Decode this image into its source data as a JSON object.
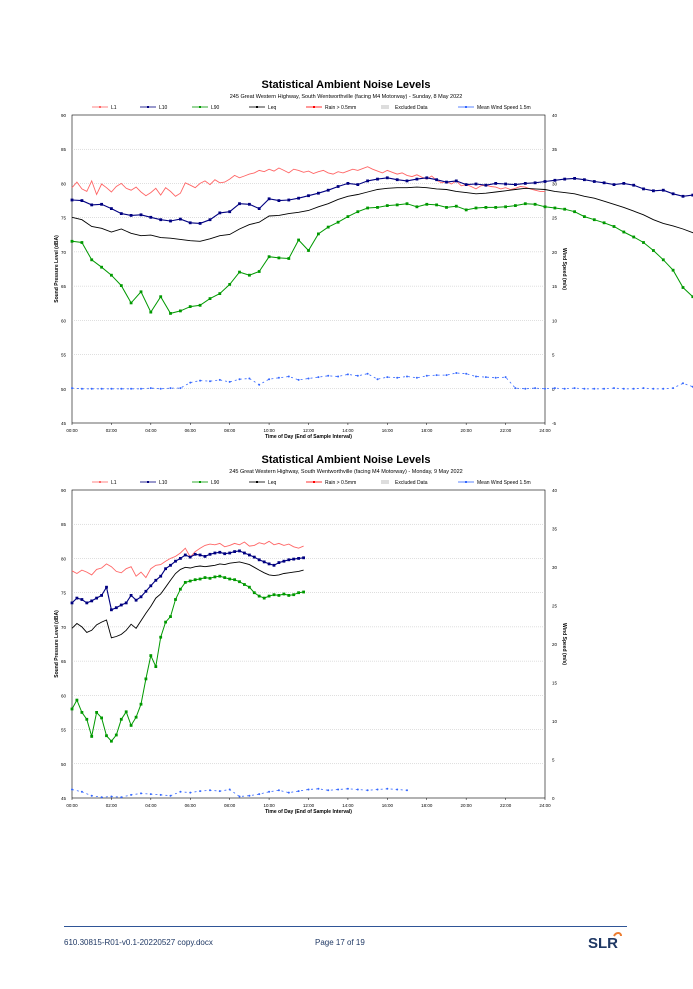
{
  "chart_data": [
    {
      "type": "line",
      "title": "Statistical Ambient Noise Levels",
      "subtitle": "245 Great Western Highway, South Wentworthville (facing M4 Motorway) - Sunday, 8 May 2022",
      "xlabel": "Time of Day (End of Sample Interval)",
      "ylabel": "Sound Pressure Level (dBA)",
      "y2label": "Wind Speed (m/s)",
      "ylim": [
        40,
        90
      ],
      "y2lim": [
        -5,
        40
      ],
      "y_ticks": [
        "90",
        "85",
        "80",
        "75",
        "70",
        "65",
        "60",
        "55",
        "50",
        "45"
      ],
      "y2_ticks": [
        "40",
        "35",
        "30",
        "25",
        "20",
        "15",
        "10",
        "5",
        "0",
        "-5"
      ],
      "x_ticks": [
        "00:00",
        "02:00",
        "04:00",
        "06:00",
        "08:00",
        "10:00",
        "12:00",
        "14:00",
        "16:00",
        "18:00",
        "20:00",
        "22:00",
        "24:00"
      ],
      "grid": true,
      "legend": [
        {
          "label": "L1",
          "color": "#ff6666"
        },
        {
          "label": "L10",
          "color": "#000080"
        },
        {
          "label": "L90",
          "color": "#009900"
        },
        {
          "label": "Leq",
          "color": "#000000"
        },
        {
          "label": "Rain > 0.5mm",
          "color": "#ff0000"
        },
        {
          "label": "Excluded Data",
          "color": "#dddddd"
        },
        {
          "label": "Mean Wind Speed 1.5m",
          "color": "#3366ff"
        }
      ],
      "series": [
        {
          "name": "L1",
          "axis": "left",
          "x_start": 0,
          "x_step": 0.25,
          "values": [
            78.2,
            79.1,
            78.0,
            77.6,
            79.3,
            77.1,
            78.8,
            78.2,
            77.5,
            78.4,
            78.9,
            78.1,
            77.8,
            78.3,
            77.5,
            76.9,
            77.4,
            78.1,
            77.0,
            78.2,
            77.6,
            76.8,
            77.3,
            79.0,
            78.6,
            78.2,
            78.9,
            79.3,
            78.7,
            79.5,
            79.0,
            79.1,
            79.6,
            80.2,
            79.8,
            80.1,
            80.4,
            80.6,
            81.0,
            80.8,
            81.2,
            80.9,
            81.4,
            81.0,
            80.6,
            81.2,
            81.0,
            80.7,
            80.9,
            80.5,
            80.8,
            81.0,
            80.6,
            80.4,
            80.8,
            80.6,
            80.9,
            81.2,
            81.0,
            81.3,
            81.6,
            81.2,
            80.9,
            80.6,
            81.0,
            80.7,
            80.4,
            80.6,
            80.2,
            80.0,
            80.3,
            79.9,
            79.6,
            80.1,
            79.4,
            79.0,
            79.2,
            78.8,
            79.3,
            78.5,
            78.7,
            78.4,
            78.0,
            78.5,
            78.6,
            78.4,
            78.3,
            78.0,
            78.2,
            77.9,
            78.1,
            78.4,
            78.3,
            78.0,
            77.8,
            77.6,
            77.6
          ]
        },
        {
          "name": "L10",
          "axis": "left",
          "x_start": 0,
          "x_step": 0.5,
          "values": [
            76.2,
            76.1,
            75.4,
            75.5,
            74.8,
            74.0,
            73.7,
            73.8,
            73.4,
            73.0,
            72.8,
            73.1,
            72.5,
            72.4,
            73.0,
            74.1,
            74.3,
            75.6,
            75.5,
            74.8,
            76.4,
            76.1,
            76.2,
            76.5,
            76.9,
            77.3,
            77.8,
            78.4,
            78.9,
            78.7,
            79.3,
            79.6,
            79.8,
            79.5,
            79.3,
            79.6,
            79.8,
            79.5,
            79.1,
            79.3,
            78.7,
            78.8,
            78.6,
            78.9,
            78.8,
            78.7,
            78.9,
            79.0,
            79.2,
            79.4,
            79.6,
            79.7,
            79.5,
            79.2,
            79.0,
            78.7,
            78.9,
            78.6,
            78.0,
            77.7,
            77.8,
            77.2,
            76.8,
            77.0,
            76.6,
            76.0,
            75.3,
            74.7,
            73.8
          ]
        },
        {
          "name": "Leq",
          "axis": "left",
          "x_start": 0,
          "x_step": 0.5,
          "values": [
            73.4,
            73.0,
            71.9,
            71.6,
            71.0,
            71.5,
            70.8,
            70.4,
            70.5,
            70.1,
            70.0,
            69.8,
            69.6,
            69.5,
            69.9,
            70.4,
            70.6,
            71.5,
            72.2,
            72.6,
            73.6,
            73.7,
            74.0,
            74.2,
            74.5,
            75.1,
            75.6,
            76.3,
            76.8,
            77.1,
            77.5,
            77.9,
            78.1,
            78.2,
            78.2,
            78.3,
            78.2,
            78.0,
            77.9,
            77.6,
            77.4,
            77.2,
            77.3,
            77.5,
            77.7,
            77.9,
            78.1,
            78.0,
            77.9,
            77.6,
            77.4,
            77.2,
            76.8,
            76.5,
            76.0,
            75.5,
            75.0,
            74.4,
            73.8,
            73.0,
            72.4,
            72.0,
            71.5,
            70.9,
            70.4,
            69.8
          ]
        },
        {
          "name": "L90",
          "axis": "left",
          "x_start": 0,
          "x_step": 0.5,
          "values": [
            69.5,
            69.3,
            66.5,
            65.3,
            64.0,
            62.3,
            59.5,
            61.3,
            58.0,
            60.5,
            57.8,
            58.2,
            58.9,
            59.1,
            60.2,
            61.0,
            62.5,
            64.5,
            64.0,
            64.6,
            67.0,
            66.8,
            66.7,
            69.7,
            68.0,
            70.7,
            71.8,
            72.6,
            73.5,
            74.3,
            74.9,
            75.0,
            75.3,
            75.4,
            75.6,
            75.1,
            75.5,
            75.4,
            75.0,
            75.2,
            74.6,
            74.9,
            75.0,
            75.0,
            75.1,
            75.3,
            75.6,
            75.5,
            75.1,
            74.9,
            74.7,
            74.3,
            73.5,
            73.0,
            72.5,
            71.9,
            71.0,
            70.2,
            69.3,
            68.0,
            66.5,
            64.8,
            62.0,
            60.5,
            58.3
          ]
        },
        {
          "name": "Mean Wind Speed 1.5m",
          "axis": "right",
          "x_start": 0,
          "x_step": 0.5,
          "values": [
            0.1,
            0.0,
            0.0,
            0.0,
            0.0,
            0.0,
            0.0,
            0.0,
            0.1,
            0.0,
            0.1,
            0.1,
            0.9,
            1.2,
            1.1,
            1.3,
            1.0,
            1.4,
            1.5,
            0.6,
            1.4,
            1.6,
            1.8,
            1.3,
            1.5,
            1.7,
            1.9,
            1.8,
            2.1,
            1.9,
            2.2,
            1.4,
            1.7,
            1.6,
            1.8,
            1.6,
            1.9,
            2.0,
            2.0,
            2.3,
            2.2,
            1.8,
            1.7,
            1.6,
            1.7,
            0.1,
            0.0,
            0.1,
            0.0,
            0.1,
            0.0,
            0.1,
            0.0,
            0.0,
            0.0,
            0.1,
            0.0,
            0.0,
            0.1,
            0.0,
            0.0,
            0.1,
            0.8,
            0.3
          ]
        }
      ]
    },
    {
      "type": "line",
      "title": "Statistical Ambient Noise Levels",
      "subtitle": "245 Great Western Highway, South Wentworthville (facing M4 Motorway) - Monday, 9 May 2022",
      "xlabel": "Time of Day (End of Sample Interval)",
      "ylabel": "Sound Pressure Level (dBA)",
      "y2label": "Wind Speed (m/s)",
      "ylim": [
        45,
        90
      ],
      "y2lim": [
        0,
        40
      ],
      "y_ticks": [
        "90",
        "85",
        "80",
        "75",
        "70",
        "65",
        "60",
        "55",
        "50",
        "45"
      ],
      "y2_ticks": [
        "40",
        "35",
        "30",
        "25",
        "20",
        "15",
        "10",
        "5",
        "0"
      ],
      "x_ticks": [
        "00:00",
        "02:00",
        "04:00",
        "06:00",
        "08:00",
        "10:00",
        "12:00",
        "14:00",
        "16:00",
        "18:00",
        "20:00",
        "22:00",
        "24:00"
      ],
      "grid": true,
      "legend": [
        {
          "label": "L1",
          "color": "#ff6666"
        },
        {
          "label": "L10",
          "color": "#000080"
        },
        {
          "label": "L90",
          "color": "#009900"
        },
        {
          "label": "Leq",
          "color": "#000000"
        },
        {
          "label": "Rain > 0.5mm",
          "color": "#ff0000"
        },
        {
          "label": "Excluded Data",
          "color": "#dddddd"
        },
        {
          "label": "Mean Wind Speed 1.5m",
          "color": "#3366ff"
        }
      ],
      "series": [
        {
          "name": "L1",
          "axis": "left",
          "x_start": 0,
          "x_step": 0.25,
          "values": [
            78.2,
            77.8,
            78.3,
            78.0,
            77.6,
            78.4,
            78.6,
            79.2,
            78.8,
            78.1,
            77.9,
            78.5,
            78.8,
            77.4,
            78.0,
            77.2,
            78.5,
            79.0,
            79.1,
            79.6,
            80.0,
            80.3,
            80.8,
            81.5,
            80.2,
            81.0,
            81.5,
            81.9,
            82.1,
            82.0,
            82.2,
            81.7,
            81.9,
            82.2,
            82.0,
            82.4,
            81.8,
            81.9,
            82.3,
            82.1,
            82.5,
            82.0,
            82.2,
            81.9,
            82.1,
            81.7,
            81.5,
            81.8
          ]
        },
        {
          "name": "L10",
          "axis": "left",
          "x_start": 0,
          "x_step": 0.25,
          "values": [
            73.5,
            74.2,
            74.0,
            73.5,
            73.8,
            74.2,
            74.6,
            75.8,
            72.5,
            72.8,
            73.2,
            73.5,
            74.6,
            73.9,
            74.4,
            75.2,
            76.0,
            76.8,
            77.4,
            78.5,
            79.0,
            79.6,
            80.0,
            80.5,
            80.2,
            80.6,
            80.5,
            80.3,
            80.6,
            80.8,
            80.9,
            80.7,
            80.8,
            81.0,
            81.1,
            80.8,
            80.5,
            80.2,
            79.8,
            79.5,
            79.2,
            79.0,
            79.4,
            79.6,
            79.8,
            79.9,
            80.0,
            80.1
          ]
        },
        {
          "name": "Leq",
          "axis": "left",
          "x_start": 0,
          "x_step": 0.25,
          "values": [
            69.8,
            70.5,
            70.0,
            69.2,
            69.5,
            70.3,
            70.7,
            71.0,
            68.4,
            68.6,
            68.9,
            69.5,
            70.4,
            69.8,
            70.9,
            72.0,
            73.0,
            74.2,
            74.8,
            75.8,
            76.8,
            77.8,
            78.4,
            78.7,
            78.6,
            78.8,
            78.9,
            78.8,
            78.9,
            79.0,
            79.2,
            79.1,
            79.3,
            79.4,
            79.5,
            79.3,
            79.1,
            78.7,
            78.3,
            77.9,
            77.6,
            77.5,
            77.6,
            77.8,
            77.9,
            78.0,
            78.1,
            78.3
          ]
        },
        {
          "name": "L90",
          "axis": "left",
          "x_start": 0,
          "x_step": 0.25,
          "values": [
            58.0,
            59.3,
            57.5,
            56.5,
            54.0,
            57.5,
            56.7,
            54.1,
            53.3,
            54.2,
            56.5,
            57.6,
            55.6,
            56.8,
            58.7,
            62.4,
            65.8,
            64.2,
            68.5,
            70.7,
            71.5,
            74.0,
            75.5,
            76.5,
            76.7,
            76.9,
            77.0,
            77.2,
            77.1,
            77.3,
            77.4,
            77.2,
            77.0,
            76.9,
            76.6,
            76.2,
            75.8,
            75.0,
            74.5,
            74.2,
            74.5,
            74.7,
            74.6,
            74.8,
            74.6,
            74.7,
            75.0,
            75.1
          ]
        },
        {
          "name": "Mean Wind Speed 1.5m",
          "axis": "right",
          "x_start": 0,
          "x_step": 0.5,
          "values": [
            1.1,
            0.8,
            0.3,
            0.1,
            0.2,
            0.1,
            0.4,
            0.6,
            0.5,
            0.4,
            0.3,
            0.8,
            0.7,
            0.9,
            1.0,
            0.9,
            1.1,
            0.2,
            0.3,
            0.5,
            0.8,
            1.0,
            0.7,
            0.9,
            1.1,
            1.2,
            1.0,
            1.1,
            1.2,
            1.1,
            1.0,
            1.1,
            1.2,
            1.1,
            1.0
          ]
        }
      ]
    }
  ],
  "footer": {
    "document": "610.30815-R01-v0.1-20220527 copy.docx",
    "page": "Page 17 of 19",
    "logo_text": "SLR"
  }
}
